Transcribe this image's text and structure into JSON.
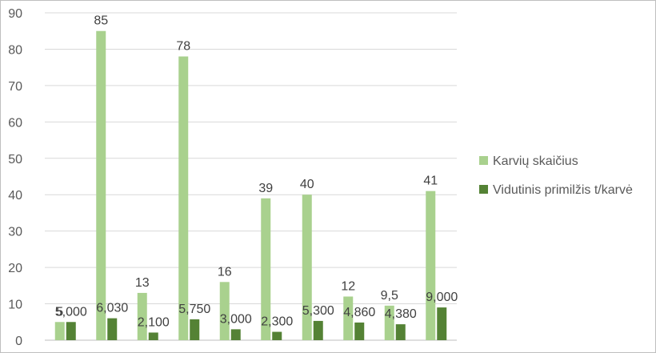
{
  "chart_data": {
    "type": "bar",
    "title": "",
    "xlabel": "",
    "ylabel": "",
    "ylim": [
      0,
      90
    ],
    "yticks": [
      0,
      10,
      20,
      30,
      40,
      50,
      60,
      70,
      80,
      90
    ],
    "grid": true,
    "legend_position": "right",
    "categories": [
      "",
      "",
      "",
      "",
      "",
      "",
      "",
      "",
      "",
      ""
    ],
    "series": [
      {
        "name": "Karvių skaičius",
        "color": "#a9d18e",
        "values": [
          5,
          85,
          13,
          78,
          16,
          39,
          40,
          12,
          9.5,
          41
        ],
        "labels": [
          "5",
          "85",
          "13",
          "78",
          "16",
          "39",
          "40",
          "12",
          "9,5",
          "41"
        ]
      },
      {
        "name": "Vidutinis primilžis t/karvė",
        "color": "#548235",
        "values": [
          5.0,
          6.03,
          2.1,
          5.75,
          3.0,
          2.3,
          5.3,
          4.86,
          4.38,
          9.0
        ],
        "labels": [
          "5,000",
          "6,030",
          "2,100",
          "5,750",
          "3,000",
          "2,300",
          "5,300",
          "4,860",
          "4,380",
          "9,000"
        ]
      }
    ]
  }
}
